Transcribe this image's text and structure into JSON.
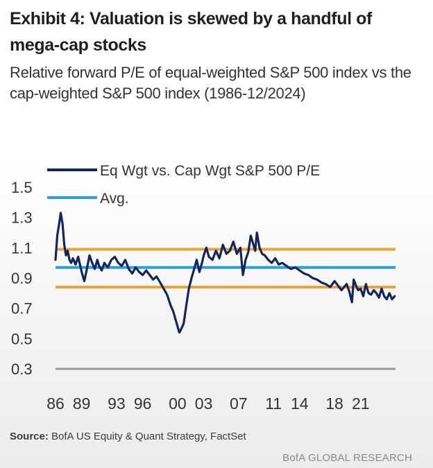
{
  "exhibit": {
    "title": "Exhibit 4: Valuation is skewed by a handful of mega-cap stocks",
    "subtitle": "Relative forward P/E of equal-weighted S&P 500 index vs the cap-weighted S&P 500 index (1986-12/2024)",
    "source_label": "Source:",
    "source_text": " BofA US Equity & Quant Strategy, FactSet",
    "brand": "BofA GLOBAL RESEARCH"
  },
  "chart_data": {
    "type": "line",
    "title": "",
    "xlabel": "",
    "ylabel": "",
    "xlim": [
      1986,
      2025
    ],
    "ylim": [
      0.3,
      1.5
    ],
    "yticks": [
      "1.5",
      "1.3",
      "1.1",
      "0.9",
      "0.7",
      "0.5",
      "0.3"
    ],
    "ytick_values": [
      1.5,
      1.3,
      1.1,
      0.9,
      0.7,
      0.5,
      0.3
    ],
    "xticks": [
      "86",
      "89",
      "93",
      "96",
      "00",
      "03",
      "07",
      "11",
      "14",
      "18",
      "21"
    ],
    "xtick_values": [
      1986,
      1989,
      1993,
      1996,
      2000,
      2003,
      2007,
      2011,
      2014,
      2018,
      2021
    ],
    "grid": false,
    "legend_position": "top-left",
    "series": [
      {
        "name": "Eq Wgt vs. Cap Wgt S&P 500 P/E",
        "color": "#14255e",
        "x": [
          1986.0,
          1986.2,
          1986.4,
          1986.6,
          1986.8,
          1987.0,
          1987.2,
          1987.4,
          1987.6,
          1987.8,
          1988.0,
          1988.3,
          1988.6,
          1989.0,
          1989.3,
          1989.6,
          1989.9,
          1990.2,
          1990.5,
          1990.8,
          1991.0,
          1991.3,
          1991.6,
          1992.0,
          1992.4,
          1992.8,
          1993.2,
          1993.6,
          1994.0,
          1994.4,
          1994.8,
          1995.2,
          1995.6,
          1996.0,
          1996.4,
          1996.8,
          1997.2,
          1997.6,
          1998.0,
          1998.4,
          1998.8,
          1999.2,
          1999.5,
          1999.8,
          2000.0,
          2000.2,
          2000.4,
          2000.7,
          2001.0,
          2001.3,
          2001.6,
          2001.9,
          2002.2,
          2002.5,
          2002.8,
          2003.0,
          2003.3,
          2003.6,
          2004.0,
          2004.4,
          2004.8,
          2005.2,
          2005.6,
          2006.0,
          2006.4,
          2006.8,
          2007.2,
          2007.5,
          2007.8,
          2008.1,
          2008.4,
          2008.7,
          2008.9,
          2009.1,
          2009.4,
          2009.7,
          2010.0,
          2010.4,
          2010.8,
          2011.2,
          2011.6,
          2012.0,
          2012.5,
          2013.0,
          2013.5,
          2014.0,
          2014.5,
          2015.0,
          2015.5,
          2016.0,
          2016.5,
          2017.0,
          2017.5,
          2018.0,
          2018.4,
          2018.8,
          2019.1,
          2019.4,
          2019.7,
          2020.0,
          2020.2,
          2020.4,
          2020.7,
          2021.0,
          2021.3,
          2021.6,
          2021.9,
          2022.2,
          2022.5,
          2022.8,
          2023.1,
          2023.4,
          2023.7,
          2024.0,
          2024.3,
          2024.6,
          2024.9
        ],
        "values": [
          1.02,
          1.18,
          1.25,
          1.33,
          1.26,
          1.12,
          1.05,
          1.08,
          1.02,
          1.0,
          1.03,
          0.99,
          1.04,
          0.94,
          0.88,
          0.96,
          1.05,
          1.0,
          0.96,
          1.02,
          0.98,
          0.95,
          1.0,
          0.97,
          1.02,
          1.04,
          1.0,
          0.98,
          1.02,
          0.96,
          0.93,
          0.97,
          0.94,
          0.92,
          0.95,
          0.92,
          0.89,
          0.91,
          0.87,
          0.83,
          0.79,
          0.72,
          0.68,
          0.62,
          0.58,
          0.54,
          0.56,
          0.6,
          0.72,
          0.83,
          0.9,
          0.96,
          1.02,
          0.94,
          1.0,
          1.05,
          1.1,
          1.04,
          1.02,
          1.08,
          1.03,
          1.12,
          1.06,
          1.08,
          1.14,
          1.06,
          1.1,
          0.92,
          1.02,
          1.07,
          1.18,
          1.12,
          1.08,
          1.2,
          1.1,
          1.06,
          1.05,
          1.02,
          1.0,
          1.03,
          0.99,
          1.0,
          0.98,
          0.96,
          0.97,
          0.95,
          0.93,
          0.92,
          0.9,
          0.89,
          0.87,
          0.86,
          0.84,
          0.88,
          0.85,
          0.82,
          0.84,
          0.86,
          0.81,
          0.74,
          0.89,
          0.86,
          0.82,
          0.83,
          0.78,
          0.86,
          0.8,
          0.79,
          0.82,
          0.8,
          0.77,
          0.83,
          0.78,
          0.76,
          0.8,
          0.76,
          0.78
        ]
      },
      {
        "name": "Avg.",
        "color": "#2e9fd6",
        "x": [
          1986,
          2025
        ],
        "values": [
          0.97,
          0.97
        ]
      },
      {
        "color": "#e8a33a",
        "x": [
          1986,
          2025
        ],
        "values": [
          1.09,
          1.09
        ]
      },
      {
        "color": "#e8a33a",
        "x": [
          1986,
          2025
        ],
        "values": [
          0.84,
          0.84
        ]
      }
    ]
  }
}
